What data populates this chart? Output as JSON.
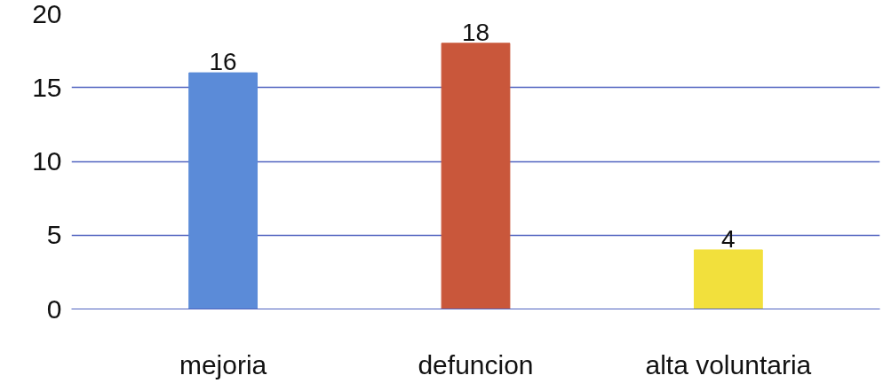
{
  "chart_data": {
    "type": "bar",
    "categories": [
      "mejoria",
      "defuncion",
      "alta voluntaria"
    ],
    "values": [
      16,
      18,
      4
    ],
    "colors": [
      "#5b8bd8",
      "#c9573b",
      "#f2e03c"
    ],
    "ylim": [
      0,
      20
    ],
    "yticks": [
      0,
      5,
      10,
      15,
      20
    ],
    "grid": "y",
    "data_labels": true
  }
}
